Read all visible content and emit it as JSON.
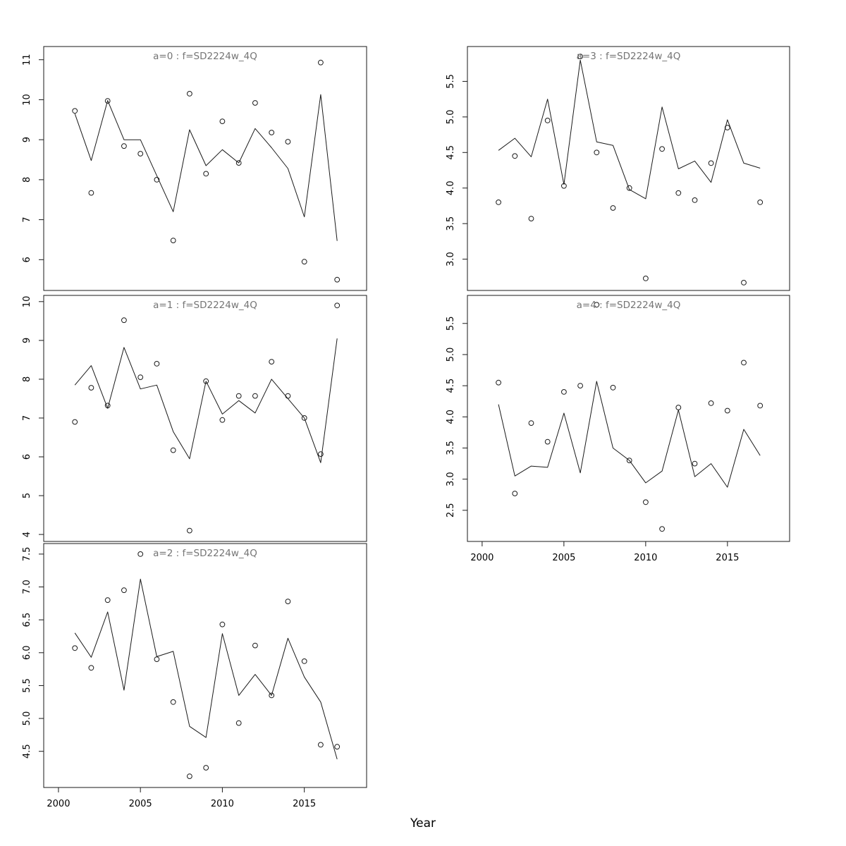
{
  "figure": {
    "xlabel": "Year",
    "background_color": "#ffffff",
    "title_color": "#757575",
    "axis_color": "#1a1a1a",
    "point_color": "#1a1a1a",
    "line_color": "#1a1a1a"
  },
  "chart_data": {
    "type": "line",
    "layout": "2-column panel grid (lattice-style), shared x axis per column, grid off, no legend",
    "xlabel": "Year",
    "x": [
      2001,
      2002,
      2003,
      2004,
      2005,
      2006,
      2007,
      2008,
      2009,
      2010,
      2011,
      2012,
      2013,
      2014,
      2015,
      2016,
      2017
    ],
    "xlim": [
      1999.1,
      2018.8
    ],
    "xticks": [
      2000,
      2005,
      2010,
      2015
    ],
    "xtick_labels": [
      "2000",
      "2005",
      "2010",
      "2015"
    ],
    "panels": [
      {
        "key": "a0",
        "title": "a=0  :  f=SD2224w_4Q",
        "ylim": [
          5.23,
          11.33
        ],
        "yticks": [
          6,
          7,
          8,
          9,
          10,
          11
        ],
        "ytick_labels": [
          "6",
          "7",
          "8",
          "9",
          "10",
          "11"
        ],
        "series": [
          {
            "name": "observed-points",
            "style": "points",
            "values": [
              9.72,
              7.67,
              9.97,
              8.84,
              8.65,
              8.0,
              6.48,
              10.15,
              8.15,
              9.46,
              8.42,
              9.92,
              9.18,
              8.95,
              5.95,
              10.93,
              5.5
            ]
          },
          {
            "name": "fitted-line",
            "style": "line",
            "values": [
              9.65,
              8.48,
              9.98,
              9.0,
              9.0,
              8.1,
              7.2,
              9.25,
              8.35,
              8.75,
              8.42,
              9.28,
              8.8,
              8.28,
              7.07,
              10.13,
              6.47
            ]
          }
        ]
      },
      {
        "key": "a1",
        "title": "a=1  :  f=SD2224w_4Q",
        "ylim": [
          3.82,
          10.16
        ],
        "yticks": [
          4,
          5,
          6,
          7,
          8,
          9,
          10
        ],
        "ytick_labels": [
          "4",
          "5",
          "6",
          "7",
          "8",
          "9",
          "10"
        ],
        "series": [
          {
            "name": "observed-points",
            "style": "points",
            "values": [
              6.9,
              7.78,
              7.32,
              9.52,
              8.05,
              8.4,
              6.17,
              4.1,
              7.95,
              6.95,
              7.57,
              7.57,
              8.45,
              7.57,
              7.0,
              6.07,
              9.9
            ]
          },
          {
            "name": "fitted-line",
            "style": "line",
            "values": [
              7.85,
              8.35,
              7.25,
              8.82,
              7.75,
              7.85,
              6.65,
              5.95,
              7.95,
              7.1,
              7.45,
              7.13,
              8.0,
              7.5,
              7.0,
              5.85,
              9.05
            ]
          }
        ]
      },
      {
        "key": "a2",
        "title": "a=2  :  f=SD2224w_4Q",
        "ylim": [
          3.95,
          7.66
        ],
        "yticks": [
          4.5,
          5.0,
          5.5,
          6.0,
          6.5,
          7.0,
          7.5
        ],
        "ytick_labels": [
          "4.5",
          "5.0",
          "5.5",
          "6.0",
          "6.5",
          "7.0",
          "7.5"
        ],
        "series": [
          {
            "name": "observed-points",
            "style": "points",
            "values": [
              6.07,
              5.77,
              6.8,
              6.95,
              7.5,
              5.9,
              5.25,
              4.12,
              4.25,
              6.43,
              4.93,
              6.11,
              5.35,
              6.78,
              5.87,
              4.6,
              4.57
            ]
          },
          {
            "name": "fitted-line",
            "style": "line",
            "values": [
              6.3,
              5.93,
              6.62,
              5.43,
              7.12,
              5.94,
              6.02,
              4.88,
              4.71,
              6.29,
              5.35,
              5.67,
              5.35,
              6.22,
              5.63,
              5.25,
              4.38
            ]
          }
        ]
      },
      {
        "key": "a3",
        "title": "a=3  :  f=SD2224w_4Q",
        "ylim": [
          2.56,
          5.99
        ],
        "yticks": [
          3.0,
          3.5,
          4.0,
          4.5,
          5.0,
          5.5
        ],
        "ytick_labels": [
          "3.0",
          "3.5",
          "4.0",
          "4.5",
          "5.0",
          "5.5"
        ],
        "series": [
          {
            "name": "observed-points",
            "style": "points",
            "values": [
              3.8,
              4.45,
              3.57,
              4.95,
              4.03,
              5.85,
              4.5,
              3.72,
              4.0,
              2.73,
              4.55,
              3.93,
              3.83,
              4.35,
              4.85,
              2.67,
              3.8
            ]
          },
          {
            "name": "fitted-line",
            "style": "line",
            "values": [
              4.53,
              4.7,
              4.44,
              5.25,
              4.05,
              5.8,
              4.65,
              4.6,
              3.98,
              3.85,
              5.14,
              4.27,
              4.38,
              4.08,
              4.96,
              4.35,
              4.28
            ]
          }
        ]
      },
      {
        "key": "a4",
        "title": "a=4  :  f=SD2224w_4Q",
        "ylim": [
          2.0,
          5.95
        ],
        "yticks": [
          2.5,
          3.0,
          3.5,
          4.0,
          4.5,
          5.0,
          5.5
        ],
        "ytick_labels": [
          "2.5",
          "3.0",
          "3.5",
          "4.0",
          "4.5",
          "5.0",
          "5.5"
        ],
        "series": [
          {
            "name": "observed-points",
            "style": "points",
            "values": [
              4.55,
              2.77,
              3.9,
              3.6,
              4.4,
              4.5,
              5.8,
              4.47,
              3.3,
              2.63,
              2.2,
              4.15,
              3.25,
              4.22,
              4.1,
              4.87,
              4.18
            ]
          },
          {
            "name": "fitted-line",
            "style": "line",
            "values": [
              4.2,
              3.05,
              3.21,
              3.19,
              4.06,
              3.1,
              4.57,
              3.5,
              3.3,
              2.94,
              3.13,
              4.11,
              3.04,
              3.25,
              2.87,
              3.8,
              3.38
            ]
          }
        ]
      }
    ]
  }
}
